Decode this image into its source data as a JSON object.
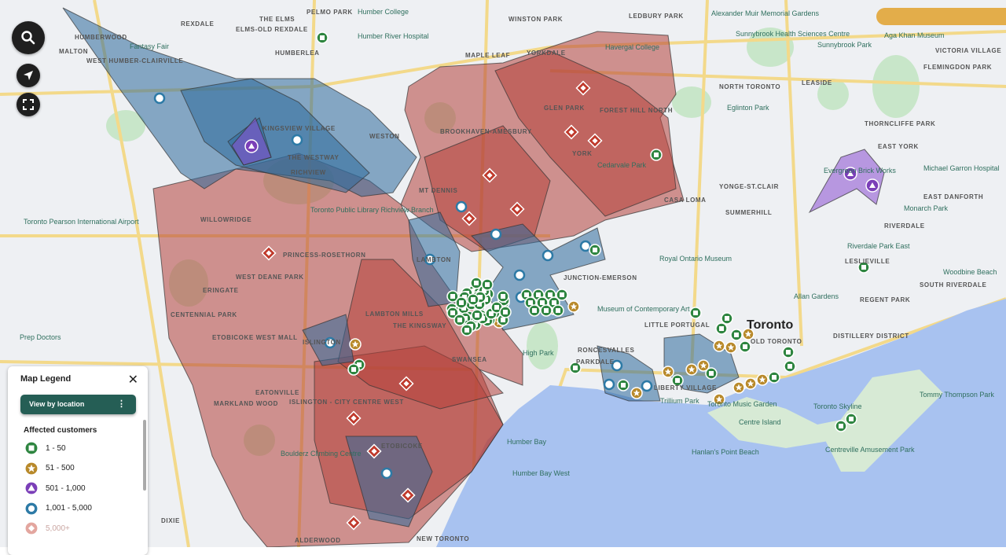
{
  "map": {
    "place_labels": [
      "HUMBERWOOD",
      "Humber College",
      "Fantasy Fair",
      "MALTON",
      "REXDALE",
      "WEST HUMBER-CLAIRVILLE",
      "THE ELMS",
      "ELMS-OLD REXDALE",
      "PELMO PARK",
      "HUMBERLEA",
      "Humber River Hospital",
      "WINSTON PARK",
      "LEDBURY PARK",
      "Alexander Muir Memorial Gardens",
      "Sunnybrook Health Sciences Centre",
      "Sunnybrook Park",
      "Aga Khan Museum",
      "VICTORIA VILLAGE",
      "FLEMINGDON PARK",
      "Havergal College",
      "YORKDALE",
      "MAPLE LEAF",
      "KINGSVIEW VILLAGE",
      "THE WESTWAY",
      "WESTON",
      "RICHVIEW",
      "BROOKHAVEN-AMESBURY",
      "GLEN PARK",
      "FOREST HILL NORTH",
      "NORTH TORONTO",
      "LEASIDE",
      "Eglinton Park",
      "YORK",
      "Cedarvale Park",
      "YONGE-ST.CLAIR",
      "THORNCLIFFE PARK",
      "EAST YORK",
      "Michael Garron Hospital",
      "EAST DANFORTH",
      "Toronto Pearson International Airport",
      "WILLOWRIDGE",
      "Toronto Public Library Richview Branch",
      "MT DENNIS",
      "CASA LOMA",
      "SUMMERHILL",
      "Monarch Park",
      "RIVERDALE",
      "PRINCESS-ROSETHORN",
      "WEST DEANE PARK",
      "ERINGATE",
      "LAMBTON",
      "JUNCTION-EMERSON",
      "Royal Ontario Museum",
      "LESLIEVILLE",
      "CENTENNIAL PARK",
      "LAMBTON MILLS",
      "THE KINGSWAY",
      "Museum of Contemporary Art",
      "LITTLE PORTUGAL",
      "Toronto",
      "OLD TORONTO",
      "Allan Gardens",
      "REGENT PARK",
      "SOUTH RIVERDALE",
      "Woodbine Beach",
      "ISLINGTON",
      "ETOBICOKE WEST MALL",
      "EATONVILLE",
      "MARKLAND WOOD",
      "ISLINGTON - CITY CENTRE WEST",
      "RONCESVALLES",
      "PARKDALE",
      "LIBERTY VILLAGE",
      "DISTILLERY DISTRICT",
      "Trillium Park",
      "Toronto Music Garden",
      "Toronto Skyline",
      "Tommy Thompson Park",
      "Centre Island",
      "Hanlan's Point Beach",
      "Centreville Amusement Park",
      "Boulderz Climbing Centre",
      "ETOBICOKE",
      "Humber Bay",
      "Humber Bay West",
      "NEW TORONTO",
      "ALDERWOOD",
      "DIXIE",
      "Prep Doctors",
      "Evergreen Brick Works",
      "Riverdale Park East",
      "High Park",
      "SWANSEA"
    ]
  },
  "controls": {
    "search_icon": "search-icon",
    "locate_icon": "navigation-arrow-icon",
    "fullscreen_icon": "fullscreen-icon"
  },
  "legend": {
    "title": "Map Legend",
    "view_button": "View by location",
    "subtitle": "Affected customers",
    "items": [
      {
        "label": "1 - 50",
        "icon": "square",
        "color": "#2e8540"
      },
      {
        "label": "51 - 500",
        "icon": "star",
        "color": "#b8892a"
      },
      {
        "label": "501 - 1,000",
        "icon": "triangle",
        "color": "#7b3fb8"
      },
      {
        "label": "1,001 - 5,000",
        "icon": "circle",
        "color": "#2d7aa6"
      },
      {
        "label": "5,000+",
        "icon": "diamond",
        "color": "#c0392b",
        "faded": true
      }
    ]
  },
  "colors": {
    "outage_red": "#b5413a",
    "outage_blue": "#2d6a9a",
    "outage_purple": "#8a4fd0",
    "water": "#a8c2f0",
    "land": "#eef0f3",
    "park": "#c8e6c9",
    "legend_button": "#255e55",
    "banner": "#e3ad4a"
  }
}
